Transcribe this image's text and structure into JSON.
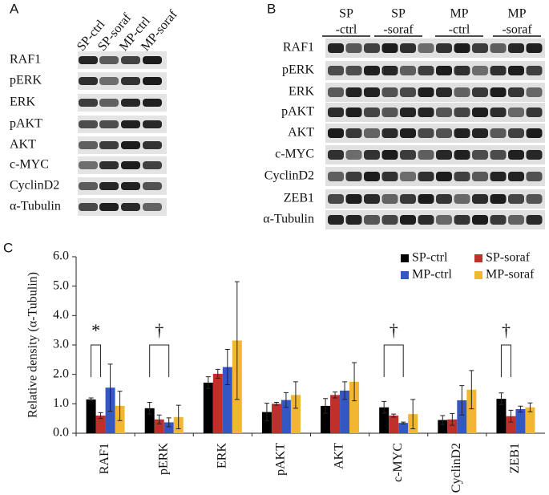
{
  "panel_a": {
    "label": "A",
    "lanes": [
      "SP-ctrl",
      "SP-soraf",
      "MP-ctrl",
      "MP-soraf"
    ],
    "rows": [
      "RAF1",
      "pERK",
      "ERK",
      "pAKT",
      "AKT",
      "c-MYC",
      "CyclinD2",
      "α-Tubulin"
    ]
  },
  "panel_b": {
    "label": "B",
    "groups": [
      [
        "SP",
        "-ctrl"
      ],
      [
        "SP",
        "-soraf"
      ],
      [
        "MP",
        "-ctrl"
      ],
      [
        "MP",
        "-soraf"
      ]
    ],
    "rows": [
      "RAF1",
      "pERK",
      "ERK",
      "pAKT",
      "AKT",
      "c-MYC",
      "CyclinD2",
      "ZEB1",
      "α-Tubulin"
    ]
  },
  "chart_data": {
    "type": "bar",
    "panel_label": "C",
    "y_label": "Relative density (α-Tubulin)",
    "categories": [
      "RAF1",
      "pERK",
      "ERK",
      "pAKT",
      "AKT",
      "c-MYC",
      "CyclinD2",
      "ZEB1"
    ],
    "series": [
      {
        "name": "SP-ctrl",
        "color": "#000000",
        "values": [
          1.15,
          0.85,
          1.72,
          0.72,
          0.93,
          0.88,
          0.45,
          1.17
        ],
        "errors": [
          0.05,
          0.2,
          0.2,
          0.3,
          0.25,
          0.2,
          0.15,
          0.2
        ]
      },
      {
        "name": "SP-soraf",
        "color": "#c0302a",
        "values": [
          0.6,
          0.47,
          2.02,
          1.0,
          1.3,
          0.6,
          0.47,
          0.58
        ],
        "errors": [
          0.1,
          0.15,
          0.15,
          0.05,
          0.1,
          0.05,
          0.2,
          0.2
        ]
      },
      {
        "name": "MP-ctrl",
        "color": "#3457c4",
        "values": [
          1.55,
          0.37,
          2.25,
          1.13,
          1.45,
          0.35,
          1.12,
          0.82
        ],
        "errors": [
          0.8,
          0.15,
          0.6,
          0.25,
          0.3,
          0.03,
          0.5,
          0.1
        ]
      },
      {
        "name": "MP-soraf",
        "color": "#f2b630",
        "values": [
          0.93,
          0.55,
          3.15,
          1.3,
          1.75,
          0.65,
          1.48,
          0.88
        ],
        "errors": [
          0.5,
          0.4,
          2.0,
          0.45,
          0.65,
          0.5,
          0.65,
          0.15
        ]
      }
    ],
    "annotations": [
      {
        "text": "*",
        "category": "RAF1",
        "from": "SP-ctrl",
        "to": "SP-soraf"
      },
      {
        "text": "†",
        "category": "pERK",
        "from": "SP-ctrl",
        "to": "MP-ctrl"
      },
      {
        "text": "†",
        "category": "c-MYC",
        "from": "SP-ctrl",
        "to": "MP-ctrl"
      },
      {
        "text": "†",
        "category": "ZEB1",
        "from": "SP-ctrl",
        "to": "SP-soraf"
      }
    ],
    "ylim": [
      0,
      6
    ],
    "yticks": [
      {
        "value": 0,
        "label": "0.0"
      },
      {
        "value": 1,
        "label": "1.0"
      },
      {
        "value": 2,
        "label": "2.0"
      },
      {
        "value": 3,
        "label": "3.0"
      },
      {
        "value": 4,
        "label": "4.0"
      },
      {
        "value": 5,
        "label": "5.0"
      },
      {
        "value": 6,
        "label": "6.0"
      }
    ],
    "legend": "upper right"
  }
}
